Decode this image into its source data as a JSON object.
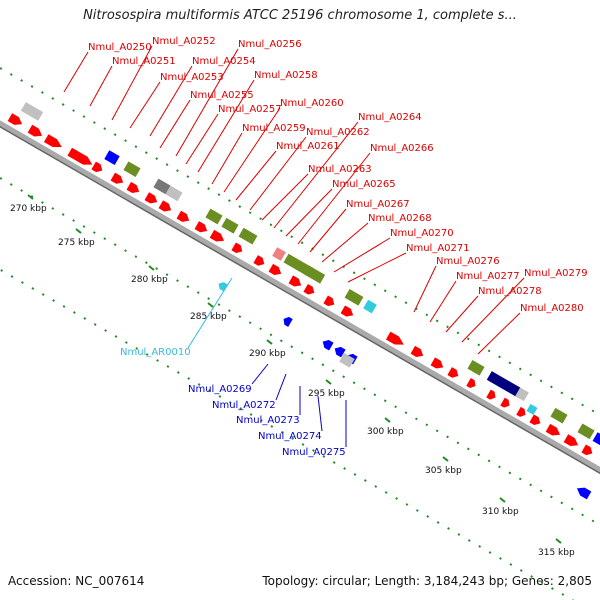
{
  "title": "Nitrosospira multiformis ATCC 25196 chromosome 1, complete s...",
  "accession": "Accession: NC_007614",
  "topology": "Topology: circular; Length: 3,184,243 bp; Genes: 2,805",
  "colors": {
    "forward_gene": "#ff0000",
    "reverse_gene": "#0000ff",
    "rna": "#33ccdd",
    "misc_green": "#6b8e23",
    "gray_feature": "#c0c0c0",
    "dark_gray_feature": "#777777",
    "navy_feature": "#000080",
    "backbone": "#999999",
    "tick": "#228b22",
    "upper_label": "#dd0000",
    "lower_label": "#0000cc",
    "rna_label": "#33bbdd"
  },
  "kbp_labels": [
    "270 kbp",
    "275 kbp",
    "280 kbp",
    "285 kbp",
    "290 kbp",
    "295 kbp",
    "300 kbp",
    "305 kbp",
    "310 kbp",
    "315 kbp"
  ],
  "upper_labels": [
    "Nmul_A0250",
    "Nmul_A0251",
    "Nmul_A0252",
    "Nmul_A0253",
    "Nmul_A0254",
    "Nmul_A0255",
    "Nmul_A0256",
    "Nmul_A0257",
    "Nmul_A0258",
    "Nmul_A0259",
    "Nmul_A0260",
    "Nmul_A0261",
    "Nmul_A0262",
    "Nmul_A0263",
    "Nmul_A0264",
    "Nmul_A0265",
    "Nmul_A0266",
    "Nmul_A0267",
    "Nmul_A0268",
    "Nmul_A0270",
    "Nmul_A0271",
    "Nmul_A0276",
    "Nmul_A0277",
    "Nmul_A0278",
    "Nmul_A0279",
    "Nmul_A0280"
  ],
  "lower_labels": [
    "Nmul_A0269",
    "Nmul_A0272",
    "Nmul_A0273",
    "Nmul_A0274",
    "Nmul_A0275"
  ],
  "rna_label": "Nmul_AR0010"
}
